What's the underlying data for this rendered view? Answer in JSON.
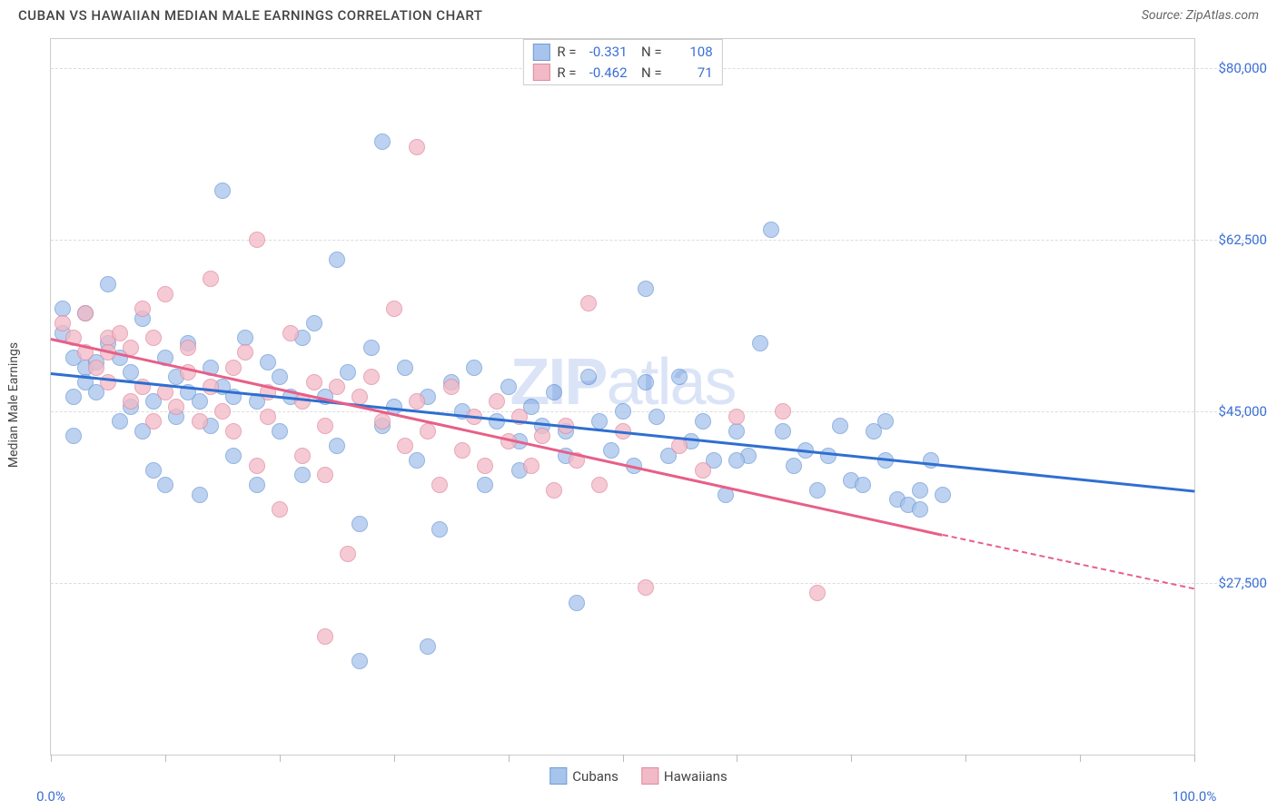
{
  "title": "CUBAN VS HAWAIIAN MEDIAN MALE EARNINGS CORRELATION CHART",
  "source": "Source: ZipAtlas.com",
  "yaxis_title": "Median Male Earnings",
  "watermark_bold": "ZIP",
  "watermark_rest": "atlas",
  "chart": {
    "type": "scatter",
    "background_color": "#ffffff",
    "grid_color": "#dddddd",
    "axis_color": "#cccccc",
    "tick_label_color": "#3b6fd6",
    "xlim": [
      0,
      100
    ],
    "ylim": [
      10000,
      83000
    ],
    "yticks": [
      {
        "v": 27500,
        "label": "$27,500"
      },
      {
        "v": 45000,
        "label": "$45,000"
      },
      {
        "v": 62500,
        "label": "$62,500"
      },
      {
        "v": 80000,
        "label": "$80,000"
      }
    ],
    "xticks_minor": [
      0,
      10,
      20,
      30,
      40,
      50,
      60,
      70,
      80,
      90,
      100
    ],
    "xtick_labels": [
      {
        "v": 0,
        "label": "0.0%"
      },
      {
        "v": 100,
        "label": "100.0%"
      }
    ],
    "point_radius": 8,
    "series": [
      {
        "name": "Cubans",
        "fill": "#a7c4ec",
        "stroke": "#6f9bd8",
        "opacity": 0.75,
        "R": "-0.331",
        "N": "108",
        "trend": {
          "x1": 0,
          "y1": 49000,
          "x2": 100,
          "y2": 37000,
          "color": "#2f6fd0",
          "width": 2.5
        },
        "points": [
          [
            1,
            53000
          ],
          [
            1,
            55500
          ],
          [
            2,
            50500
          ],
          [
            2,
            46500
          ],
          [
            2,
            42500
          ],
          [
            3,
            55000
          ],
          [
            3,
            49500
          ],
          [
            3,
            48000
          ],
          [
            4,
            47000
          ],
          [
            4,
            50000
          ],
          [
            5,
            52000
          ],
          [
            5,
            58000
          ],
          [
            6,
            44000
          ],
          [
            6,
            50500
          ],
          [
            7,
            45500
          ],
          [
            7,
            49000
          ],
          [
            8,
            54500
          ],
          [
            8,
            43000
          ],
          [
            9,
            46000
          ],
          [
            9,
            39000
          ],
          [
            10,
            50500
          ],
          [
            10,
            37500
          ],
          [
            11,
            48500
          ],
          [
            11,
            44500
          ],
          [
            12,
            47000
          ],
          [
            12,
            52000
          ],
          [
            13,
            36500
          ],
          [
            13,
            46000
          ],
          [
            14,
            49500
          ],
          [
            14,
            43500
          ],
          [
            15,
            67500
          ],
          [
            15,
            47500
          ],
          [
            16,
            40500
          ],
          [
            16,
            46500
          ],
          [
            17,
            52500
          ],
          [
            18,
            37500
          ],
          [
            18,
            46000
          ],
          [
            19,
            50000
          ],
          [
            20,
            43000
          ],
          [
            20,
            48500
          ],
          [
            21,
            46500
          ],
          [
            22,
            52500
          ],
          [
            22,
            38500
          ],
          [
            23,
            54000
          ],
          [
            24,
            46500
          ],
          [
            25,
            60500
          ],
          [
            25,
            41500
          ],
          [
            26,
            49000
          ],
          [
            27,
            33500
          ],
          [
            27,
            19500
          ],
          [
            28,
            51500
          ],
          [
            29,
            72500
          ],
          [
            29,
            43500
          ],
          [
            30,
            45500
          ],
          [
            31,
            49500
          ],
          [
            32,
            40000
          ],
          [
            33,
            21000
          ],
          [
            33,
            46500
          ],
          [
            34,
            33000
          ],
          [
            35,
            48000
          ],
          [
            36,
            45000
          ],
          [
            37,
            49500
          ],
          [
            38,
            37500
          ],
          [
            39,
            44000
          ],
          [
            40,
            47500
          ],
          [
            41,
            42000
          ],
          [
            41,
            39000
          ],
          [
            42,
            45500
          ],
          [
            43,
            43500
          ],
          [
            44,
            47000
          ],
          [
            45,
            40500
          ],
          [
            45,
            43000
          ],
          [
            46,
            25500
          ],
          [
            47,
            48500
          ],
          [
            48,
            44000
          ],
          [
            49,
            41000
          ],
          [
            50,
            45000
          ],
          [
            51,
            39500
          ],
          [
            52,
            57500
          ],
          [
            53,
            44500
          ],
          [
            54,
            40500
          ],
          [
            55,
            48500
          ],
          [
            56,
            42000
          ],
          [
            57,
            44000
          ],
          [
            58,
            40000
          ],
          [
            59,
            36500
          ],
          [
            60,
            43000
          ],
          [
            61,
            40500
          ],
          [
            62,
            52000
          ],
          [
            63,
            63500
          ],
          [
            64,
            43000
          ],
          [
            65,
            39500
          ],
          [
            66,
            41000
          ],
          [
            67,
            37000
          ],
          [
            68,
            40500
          ],
          [
            69,
            43500
          ],
          [
            70,
            38000
          ],
          [
            71,
            37500
          ],
          [
            72,
            43000
          ],
          [
            73,
            40000
          ],
          [
            73,
            44000
          ],
          [
            74,
            36000
          ],
          [
            75,
            35500
          ],
          [
            76,
            37000
          ],
          [
            76,
            35000
          ],
          [
            77,
            40000
          ],
          [
            78,
            36500
          ],
          [
            60,
            40000
          ],
          [
            52,
            48000
          ]
        ]
      },
      {
        "name": "Hawaiians",
        "fill": "#f2b9c6",
        "stroke": "#e18aa0",
        "opacity": 0.75,
        "R": "-0.462",
        "N": "71",
        "trend": {
          "x1": 0,
          "y1": 52500,
          "x2": 78,
          "y2": 32500,
          "color": "#e75f88",
          "width": 2.5,
          "extend_to_x": 100,
          "extend_to_y": 27000
        },
        "points": [
          [
            1,
            54000
          ],
          [
            2,
            52500
          ],
          [
            3,
            55000
          ],
          [
            3,
            51000
          ],
          [
            4,
            49500
          ],
          [
            5,
            52500
          ],
          [
            5,
            48000
          ],
          [
            6,
            53000
          ],
          [
            7,
            46000
          ],
          [
            7,
            51500
          ],
          [
            8,
            47500
          ],
          [
            8,
            55500
          ],
          [
            9,
            44000
          ],
          [
            9,
            52500
          ],
          [
            10,
            57000
          ],
          [
            10,
            47000
          ],
          [
            11,
            45500
          ],
          [
            12,
            49000
          ],
          [
            12,
            51500
          ],
          [
            13,
            44000
          ],
          [
            14,
            58500
          ],
          [
            14,
            47500
          ],
          [
            15,
            45000
          ],
          [
            16,
            43000
          ],
          [
            16,
            49500
          ],
          [
            17,
            51000
          ],
          [
            18,
            62500
          ],
          [
            18,
            39500
          ],
          [
            19,
            47000
          ],
          [
            19,
            44500
          ],
          [
            20,
            35000
          ],
          [
            21,
            53000
          ],
          [
            22,
            46000
          ],
          [
            22,
            40500
          ],
          [
            23,
            48000
          ],
          [
            24,
            43500
          ],
          [
            24,
            38500
          ],
          [
            25,
            47500
          ],
          [
            26,
            30500
          ],
          [
            27,
            46500
          ],
          [
            28,
            48500
          ],
          [
            29,
            44000
          ],
          [
            30,
            55500
          ],
          [
            31,
            41500
          ],
          [
            32,
            46000
          ],
          [
            32,
            72000
          ],
          [
            33,
            43000
          ],
          [
            34,
            37500
          ],
          [
            35,
            47500
          ],
          [
            36,
            41000
          ],
          [
            37,
            44500
          ],
          [
            38,
            39500
          ],
          [
            39,
            46000
          ],
          [
            40,
            42000
          ],
          [
            41,
            44500
          ],
          [
            42,
            39500
          ],
          [
            43,
            42500
          ],
          [
            44,
            37000
          ],
          [
            45,
            43500
          ],
          [
            46,
            40000
          ],
          [
            47,
            56000
          ],
          [
            48,
            37500
          ],
          [
            50,
            43000
          ],
          [
            52,
            27000
          ],
          [
            55,
            41500
          ],
          [
            57,
            39000
          ],
          [
            60,
            44500
          ],
          [
            64,
            45000
          ],
          [
            67,
            26500
          ],
          [
            24,
            22000
          ],
          [
            5,
            51000
          ]
        ]
      }
    ]
  },
  "legend_bottom": [
    {
      "label": "Cubans",
      "fill": "#a7c4ec",
      "stroke": "#6f9bd8"
    },
    {
      "label": "Hawaiians",
      "fill": "#f2b9c6",
      "stroke": "#e18aa0"
    }
  ]
}
